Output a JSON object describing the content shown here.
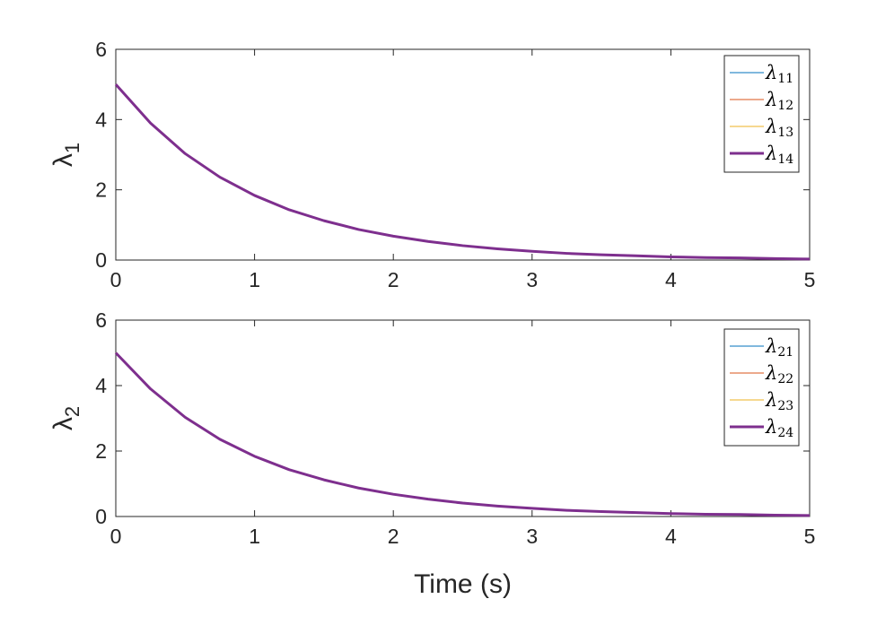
{
  "chart_data": [
    {
      "type": "line",
      "ylabel_main": "λ",
      "ylabel_sub": "1",
      "xlabel": "",
      "xlim": [
        0,
        5
      ],
      "ylim": [
        0,
        6
      ],
      "xticks": [
        "0",
        "1",
        "2",
        "3",
        "4",
        "5"
      ],
      "yticks": [
        "0",
        "2",
        "4",
        "6"
      ],
      "grid": false,
      "legend_position": "top-right",
      "x": [
        0,
        0.25,
        0.5,
        0.75,
        1,
        1.25,
        1.5,
        1.75,
        2,
        2.25,
        2.5,
        2.75,
        3,
        3.25,
        3.5,
        3.75,
        4,
        4.25,
        4.5,
        4.75,
        5
      ],
      "series": [
        {
          "name_main": "λ",
          "name_sub": "11",
          "color": "#0072BD",
          "width": 1,
          "values": [
            5.0,
            3.9,
            3.03,
            2.36,
            1.84,
            1.43,
            1.12,
            0.87,
            0.68,
            0.53,
            0.41,
            0.32,
            0.25,
            0.19,
            0.15,
            0.12,
            0.09,
            0.07,
            0.06,
            0.04,
            0.03
          ]
        },
        {
          "name_main": "λ",
          "name_sub": "12",
          "color": "#D95319",
          "width": 1,
          "values": [
            5.0,
            3.9,
            3.03,
            2.36,
            1.84,
            1.43,
            1.12,
            0.87,
            0.68,
            0.53,
            0.41,
            0.32,
            0.25,
            0.19,
            0.15,
            0.12,
            0.09,
            0.07,
            0.06,
            0.04,
            0.03
          ]
        },
        {
          "name_main": "λ",
          "name_sub": "13",
          "color": "#EDB120",
          "width": 1,
          "values": [
            5.0,
            3.9,
            3.03,
            2.36,
            1.84,
            1.43,
            1.12,
            0.87,
            0.68,
            0.53,
            0.41,
            0.32,
            0.25,
            0.19,
            0.15,
            0.12,
            0.09,
            0.07,
            0.06,
            0.04,
            0.03
          ]
        },
        {
          "name_main": "λ",
          "name_sub": "14",
          "color": "#7E2F8E",
          "width": 3,
          "values": [
            5.0,
            3.9,
            3.03,
            2.36,
            1.84,
            1.43,
            1.12,
            0.87,
            0.68,
            0.53,
            0.41,
            0.32,
            0.25,
            0.19,
            0.15,
            0.12,
            0.09,
            0.07,
            0.06,
            0.04,
            0.03
          ]
        }
      ]
    },
    {
      "type": "line",
      "ylabel_main": "λ",
      "ylabel_sub": "2",
      "xlabel": "Time (s)",
      "xlim": [
        0,
        5
      ],
      "ylim": [
        0,
        6
      ],
      "xticks": [
        "0",
        "1",
        "2",
        "3",
        "4",
        "5"
      ],
      "yticks": [
        "0",
        "2",
        "4",
        "6"
      ],
      "grid": false,
      "legend_position": "top-right",
      "x": [
        0,
        0.25,
        0.5,
        0.75,
        1,
        1.25,
        1.5,
        1.75,
        2,
        2.25,
        2.5,
        2.75,
        3,
        3.25,
        3.5,
        3.75,
        4,
        4.25,
        4.5,
        4.75,
        5
      ],
      "series": [
        {
          "name_main": "λ",
          "name_sub": "21",
          "color": "#0072BD",
          "width": 1,
          "values": [
            5.0,
            3.9,
            3.03,
            2.36,
            1.84,
            1.43,
            1.12,
            0.87,
            0.68,
            0.53,
            0.41,
            0.32,
            0.25,
            0.19,
            0.15,
            0.12,
            0.09,
            0.07,
            0.06,
            0.04,
            0.03
          ]
        },
        {
          "name_main": "λ",
          "name_sub": "22",
          "color": "#D95319",
          "width": 1,
          "values": [
            5.0,
            3.9,
            3.03,
            2.36,
            1.84,
            1.43,
            1.12,
            0.87,
            0.68,
            0.53,
            0.41,
            0.32,
            0.25,
            0.19,
            0.15,
            0.12,
            0.09,
            0.07,
            0.06,
            0.04,
            0.03
          ]
        },
        {
          "name_main": "λ",
          "name_sub": "23",
          "color": "#EDB120",
          "width": 1,
          "values": [
            5.0,
            3.9,
            3.03,
            2.36,
            1.84,
            1.43,
            1.12,
            0.87,
            0.68,
            0.53,
            0.41,
            0.32,
            0.25,
            0.19,
            0.15,
            0.12,
            0.09,
            0.07,
            0.06,
            0.04,
            0.03
          ]
        },
        {
          "name_main": "λ",
          "name_sub": "24",
          "color": "#7E2F8E",
          "width": 3,
          "values": [
            5.0,
            3.9,
            3.03,
            2.36,
            1.84,
            1.43,
            1.12,
            0.87,
            0.68,
            0.53,
            0.41,
            0.32,
            0.25,
            0.19,
            0.15,
            0.12,
            0.09,
            0.07,
            0.06,
            0.04,
            0.03
          ]
        }
      ]
    }
  ]
}
